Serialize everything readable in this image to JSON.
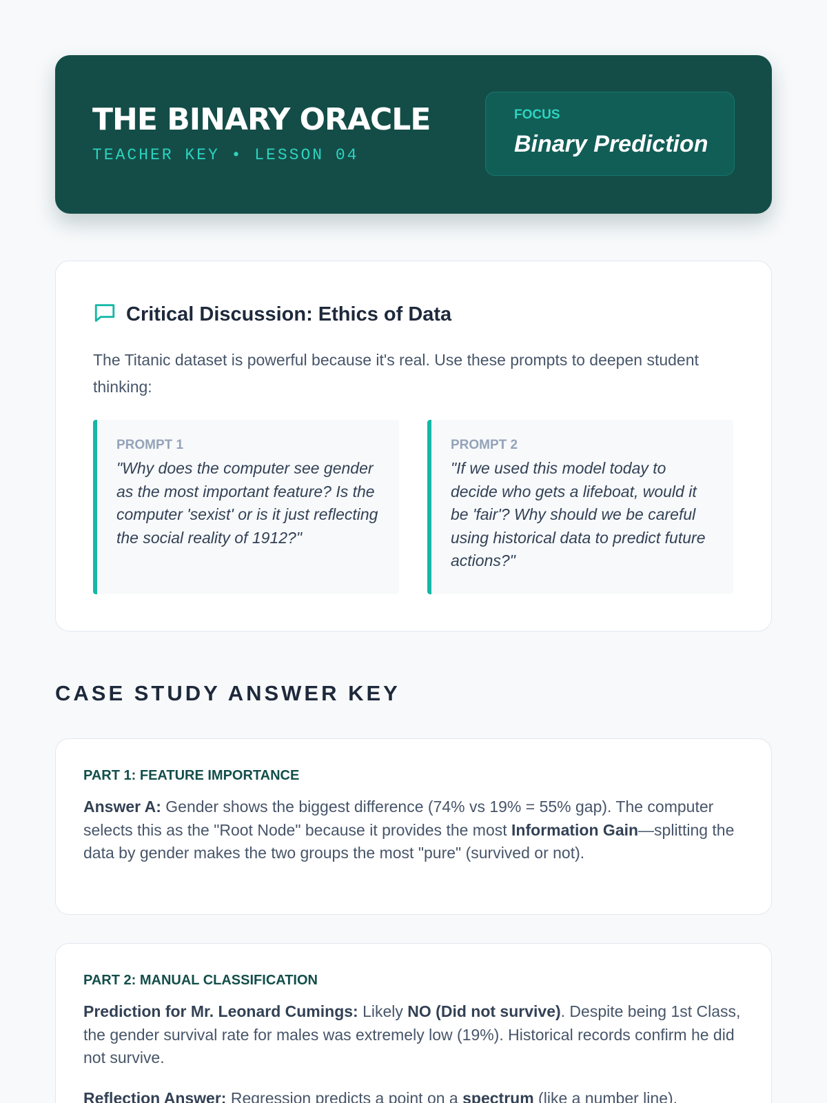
{
  "header": {
    "title": "THE BINARY ORACLE",
    "subtitle": "TEACHER KEY • LESSON 04",
    "focus_label": "FOCUS",
    "focus_value": "Binary Prediction"
  },
  "discussion": {
    "icon": "chat-bubble-icon",
    "title": "Critical Discussion: Ethics of Data",
    "intro": "The Titanic dataset is powerful because it's real. Use these prompts to deepen student thinking:",
    "prompts": [
      {
        "label": "PROMPT 1",
        "text": "\"Why does the computer see gender as the most important feature? Is the computer 'sexist' or is it just reflecting the social reality of 1912?\""
      },
      {
        "label": "PROMPT 2",
        "text": "\"If we used this model today to decide who gets a lifeboat, would it be 'fair'? Why should we be careful using historical data to predict future actions?\""
      }
    ]
  },
  "answer_key": {
    "title": "CASE STUDY ANSWER KEY",
    "parts": [
      {
        "label": "PART 1: FEATURE IMPORTANCE",
        "paragraphs": [
          [
            {
              "t": "Answer A:",
              "b": true
            },
            {
              "t": " Gender shows the biggest difference (74% vs 19% = 55% gap). The computer selects this as the \"Root Node\" because it provides the most "
            },
            {
              "t": "Information Gain",
              "b": true
            },
            {
              "t": "—splitting the data by gender makes the two groups the most \"pure\" (survived or not)."
            }
          ]
        ]
      },
      {
        "label": "PART 2: MANUAL CLASSIFICATION",
        "paragraphs": [
          [
            {
              "t": "Prediction for Mr. Leonard Cumings:",
              "b": true
            },
            {
              "t": " Likely "
            },
            {
              "t": "NO (Did not survive)",
              "b": true
            },
            {
              "t": ". Despite being 1st Class, the gender survival rate for males was extremely low (19%). Historical records confirm he did not survive."
            }
          ],
          [
            {
              "t": "Reflection Answer:",
              "b": true
            },
            {
              "t": " Regression predicts a point on a "
            },
            {
              "t": "spectrum",
              "b": true
            },
            {
              "t": " (like a number line)."
            }
          ]
        ]
      }
    ]
  },
  "colors": {
    "header_bg": "#144d48",
    "accent": "#2dd4bf",
    "prompt_border": "#14b8a6",
    "background": "#f7f9fb"
  }
}
